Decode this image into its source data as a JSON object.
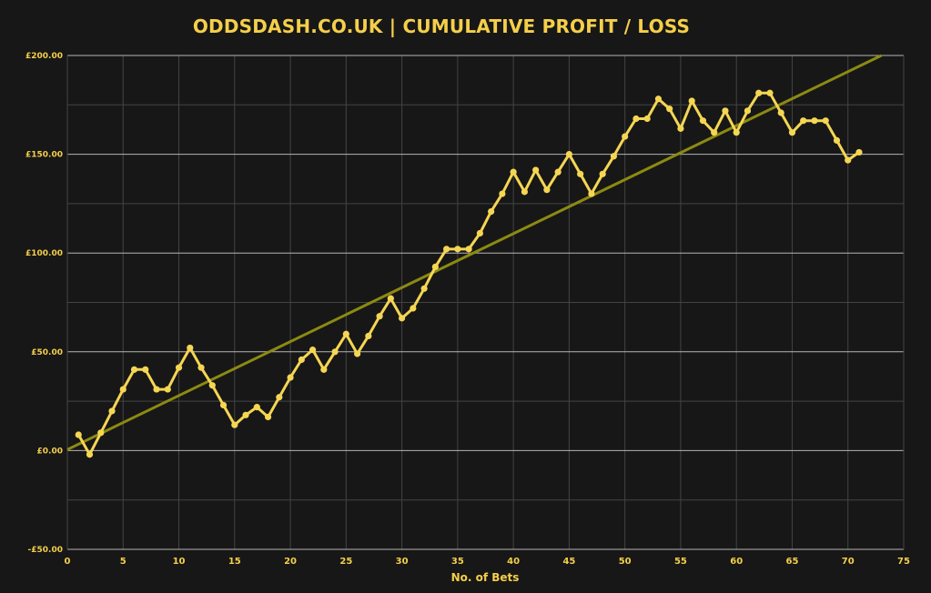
{
  "chart_data": {
    "type": "line",
    "title": "ODDSDASH.CO.UK | CUMULATIVE PROFIT / LOSS",
    "xlabel": "No. of Bets",
    "ylabel": "",
    "xlim": [
      0,
      75
    ],
    "ylim": [
      -50,
      200
    ],
    "x_ticks": [
      0,
      5,
      10,
      15,
      20,
      25,
      30,
      35,
      40,
      45,
      50,
      55,
      60,
      65,
      70,
      75
    ],
    "y_ticks": [
      {
        "value": -50,
        "label": "-£50.00"
      },
      {
        "value": 0,
        "label": "£0.00"
      },
      {
        "value": 50,
        "label": "£50.00"
      },
      {
        "value": 100,
        "label": "£100.00"
      },
      {
        "value": 150,
        "label": "£150.00"
      },
      {
        "value": 200,
        "label": "£200.00"
      }
    ],
    "y_minor_ticks": [
      -25,
      25,
      75,
      125,
      175
    ],
    "grid": true,
    "colors": {
      "background": "#171717",
      "grid_major": "#b5b5b5",
      "grid_minor": "#444444",
      "series_line": "#f5d653",
      "trend_line": "#8c8a12",
      "text": "#f5cf4a"
    },
    "series": [
      {
        "name": "",
        "x": [
          1,
          2,
          3,
          4,
          5,
          6,
          7,
          8,
          9,
          10,
          11,
          12,
          13,
          14,
          15,
          16,
          17,
          18,
          19,
          20,
          21,
          22,
          23,
          24,
          25,
          26,
          27,
          28,
          29,
          30,
          31,
          32,
          33,
          34,
          35,
          36,
          37,
          38,
          39,
          40,
          41,
          42,
          43,
          44,
          45,
          46,
          47,
          48,
          49,
          50,
          51,
          52,
          53,
          54,
          55,
          56,
          57,
          58,
          59,
          60,
          61,
          62,
          63,
          64,
          65,
          66,
          67,
          68,
          69,
          70,
          71
        ],
        "y": [
          8,
          -2,
          9,
          20,
          31,
          41,
          41,
          31,
          31,
          42,
          52,
          42,
          33,
          23,
          13,
          18,
          22,
          17,
          27,
          37,
          46,
          51,
          41,
          50,
          59,
          49,
          58,
          68,
          77,
          67,
          72,
          82,
          93,
          102,
          102,
          102,
          110,
          121,
          130,
          141,
          131,
          142,
          132,
          141,
          150,
          140,
          130,
          140,
          149,
          159,
          168,
          168,
          178,
          173,
          163,
          177,
          167,
          161,
          172,
          161,
          172,
          181,
          181,
          171,
          161,
          167,
          167,
          167,
          157,
          147,
          151
        ]
      }
    ],
    "trend_line": {
      "x": [
        0,
        73
      ],
      "y": [
        0.5,
        200
      ]
    }
  }
}
